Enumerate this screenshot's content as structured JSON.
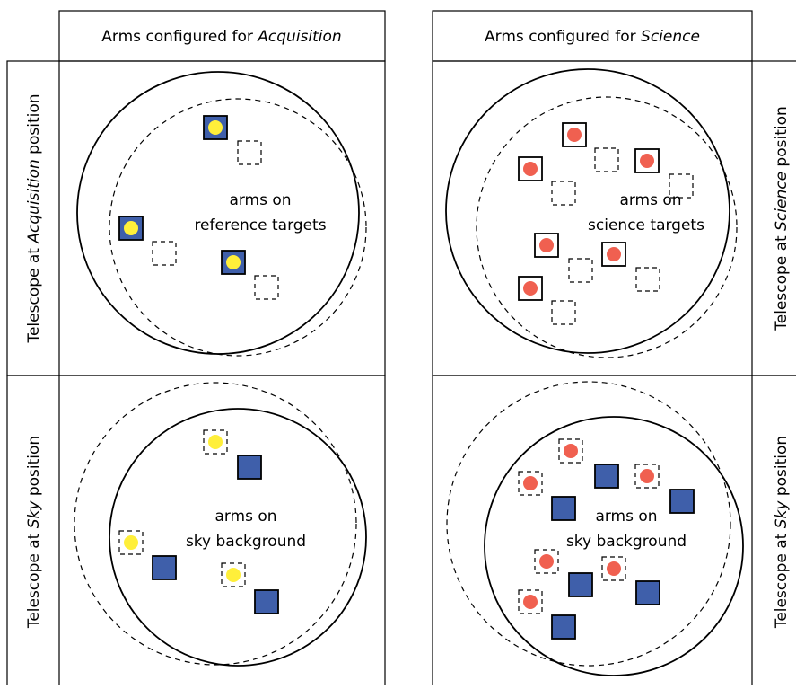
{
  "columns": [
    {
      "prefix": "Arms configured for ",
      "emphasis": "Acquisition"
    },
    {
      "prefix": "Arms configured for ",
      "emphasis": "Science"
    }
  ],
  "rows": [
    {
      "prefix": "Telescope at ",
      "emphasis": "Acquisition",
      "suffix": " position"
    },
    {
      "prefix": "Telescope at ",
      "emphasis": "Science",
      "suffix": " position"
    },
    {
      "prefix": "Telescope at ",
      "emphasis": "Sky",
      "suffix": " position"
    },
    {
      "prefix": "Telescope at ",
      "emphasis": "Sky",
      "suffix": " position"
    }
  ],
  "panels": [
    {
      "line1": "arms on",
      "line2": "reference targets"
    },
    {
      "line1": "arms on",
      "line2": "science targets"
    },
    {
      "line1": "arms on",
      "line2": "sky background"
    },
    {
      "line1": "arms on",
      "line2": "sky background"
    }
  ]
}
